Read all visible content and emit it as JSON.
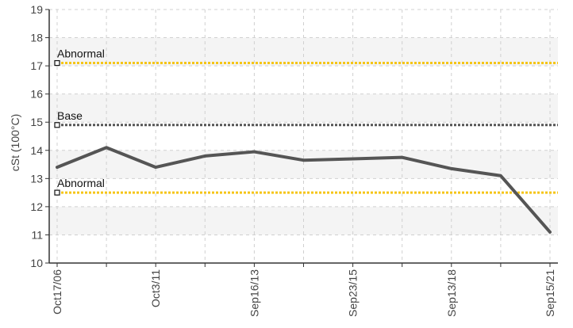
{
  "chart_data": {
    "type": "line",
    "title": "",
    "xlabel": "",
    "ylabel": "cSt (100°C)",
    "ylim": [
      10,
      19
    ],
    "yticks": [
      10,
      11,
      12,
      13,
      14,
      15,
      16,
      17,
      18,
      19
    ],
    "grid": true,
    "x_tick_labels": [
      "Oct17/06",
      "Oct3/11",
      "Sep16/13",
      "Sep23/15",
      "Sep13/18",
      "Sep15/21"
    ],
    "x_points": 11,
    "series": [
      {
        "values": [
          13.4,
          14.1,
          13.4,
          13.8,
          13.95,
          13.65,
          13.7,
          13.75,
          13.35,
          13.1,
          11.1
        ],
        "color": "#555555"
      }
    ],
    "reference_lines": [
      {
        "label": "Abnormal",
        "value": 17.1,
        "color": "#f5c518"
      },
      {
        "label": "Base",
        "value": 14.9,
        "color": "#555555"
      },
      {
        "label": "Abnormal",
        "value": 12.5,
        "color": "#f5c518"
      }
    ],
    "colors": {
      "band": "#f4f4f4",
      "grid": "#d0d0d0",
      "axis": "#333333"
    }
  }
}
